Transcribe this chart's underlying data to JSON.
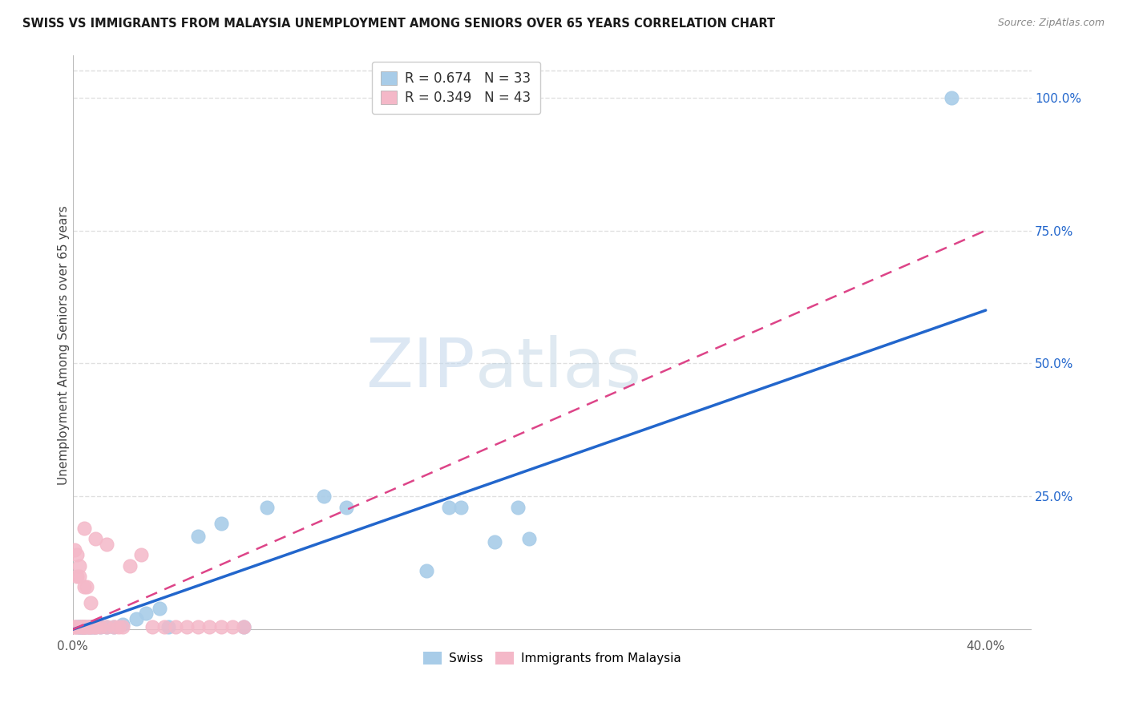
{
  "title": "SWISS VS IMMIGRANTS FROM MALAYSIA UNEMPLOYMENT AMONG SENIORS OVER 65 YEARS CORRELATION CHART",
  "source": "Source: ZipAtlas.com",
  "ylabel": "Unemployment Among Seniors over 65 years",
  "swiss_R": 0.674,
  "swiss_N": 33,
  "malaysia_R": 0.349,
  "malaysia_N": 43,
  "swiss_color": "#a8cce8",
  "malaysia_color": "#f4b8c8",
  "swiss_line_color": "#2266cc",
  "malaysia_line_color": "#dd4488",
  "xlim": [
    0.0,
    0.42
  ],
  "ylim": [
    -0.01,
    1.08
  ],
  "plot_xlim": [
    0.0,
    0.4
  ],
  "plot_ylim": [
    0.0,
    1.05
  ],
  "xtick_positions": [
    0.0,
    0.4
  ],
  "xtick_labels": [
    "0.0%",
    "40.0%"
  ],
  "right_ytick_positions": [
    0.25,
    0.5,
    0.75,
    1.0
  ],
  "right_ytick_labels": [
    "25.0%",
    "50.0%",
    "75.0%",
    "100.0%"
  ],
  "swiss_x": [
    0.002,
    0.003,
    0.003,
    0.004,
    0.004,
    0.005,
    0.005,
    0.006,
    0.007,
    0.008,
    0.009,
    0.01,
    0.012,
    0.015,
    0.018,
    0.022,
    0.028,
    0.032,
    0.038,
    0.042,
    0.055,
    0.065,
    0.075,
    0.085,
    0.11,
    0.12,
    0.155,
    0.165,
    0.17,
    0.185,
    0.195,
    0.2,
    0.385
  ],
  "swiss_y": [
    0.005,
    0.005,
    0.005,
    0.005,
    0.005,
    0.005,
    0.005,
    0.005,
    0.005,
    0.005,
    0.005,
    0.005,
    0.005,
    0.005,
    0.005,
    0.01,
    0.02,
    0.03,
    0.04,
    0.005,
    0.175,
    0.2,
    0.005,
    0.23,
    0.25,
    0.23,
    0.11,
    0.23,
    0.23,
    0.165,
    0.23,
    0.17,
    1.0
  ],
  "malaysia_x": [
    0.001,
    0.001,
    0.001,
    0.002,
    0.002,
    0.002,
    0.003,
    0.003,
    0.003,
    0.004,
    0.004,
    0.005,
    0.005,
    0.005,
    0.005,
    0.006,
    0.006,
    0.007,
    0.007,
    0.008,
    0.008,
    0.009,
    0.01,
    0.01,
    0.012,
    0.015,
    0.018,
    0.02,
    0.022,
    0.025,
    0.03,
    0.035,
    0.04,
    0.045,
    0.05,
    0.055,
    0.06,
    0.065,
    0.07,
    0.075,
    0.005,
    0.01,
    0.015
  ],
  "malaysia_y": [
    0.005,
    0.005,
    0.15,
    0.005,
    0.1,
    0.14,
    0.005,
    0.1,
    0.12,
    0.005,
    0.005,
    0.005,
    0.005,
    0.005,
    0.08,
    0.005,
    0.08,
    0.005,
    0.005,
    0.005,
    0.05,
    0.005,
    0.005,
    0.005,
    0.005,
    0.005,
    0.005,
    0.005,
    0.005,
    0.12,
    0.14,
    0.005,
    0.005,
    0.005,
    0.005,
    0.005,
    0.005,
    0.005,
    0.005,
    0.005,
    0.19,
    0.17,
    0.16
  ],
  "watermark_zip": "ZIP",
  "watermark_atlas": "atlas",
  "background_color": "#ffffff",
  "grid_color": "#dddddd",
  "legend_swiss_text": "R = 0.674   N = 33",
  "legend_malaysia_text": "R = 0.349   N = 43",
  "legend_r_color": "#2266cc",
  "legend_n_color": "#2266cc",
  "bottom_legend_swiss": "Swiss",
  "bottom_legend_malaysia": "Immigrants from Malaysia"
}
